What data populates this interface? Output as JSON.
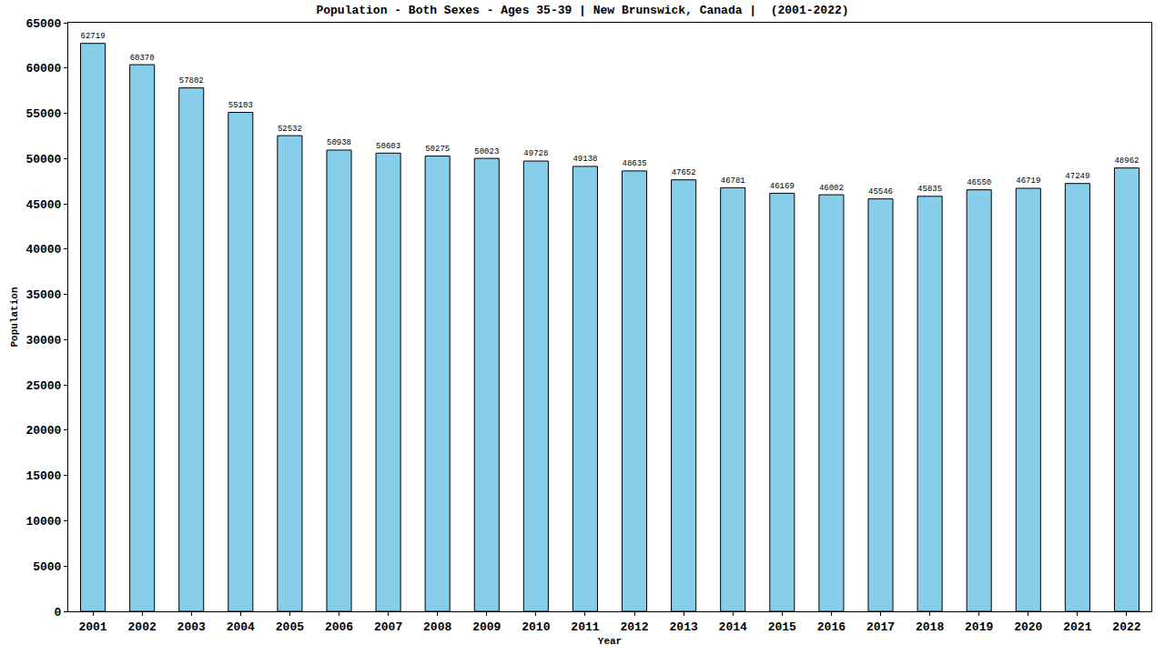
{
  "chart_data": {
    "type": "bar",
    "title": "Population - Both Sexes - Ages 35-39 | New Brunswick, Canada |  (2001-2022)",
    "x_label": "Year",
    "y_label": "Population",
    "categories": [
      "2001",
      "2002",
      "2003",
      "2004",
      "2005",
      "2006",
      "2007",
      "2008",
      "2009",
      "2010",
      "2011",
      "2012",
      "2013",
      "2014",
      "2015",
      "2016",
      "2017",
      "2018",
      "2019",
      "2020",
      "2021",
      "2022"
    ],
    "values": [
      62719,
      60370,
      57802,
      55103,
      52532,
      50938,
      50603,
      50275,
      50023,
      49728,
      49138,
      48635,
      47652,
      46781,
      46169,
      46002,
      45546,
      45835,
      46550,
      46719,
      47249,
      48962
    ],
    "color": "#87ceeb",
    "ylim": [
      0,
      65000
    ],
    "yticks": [
      0,
      5000,
      10000,
      15000,
      20000,
      25000,
      30000,
      35000,
      40000,
      45000,
      50000,
      55000,
      60000,
      65000
    ],
    "grid": false,
    "data_labels": true
  }
}
